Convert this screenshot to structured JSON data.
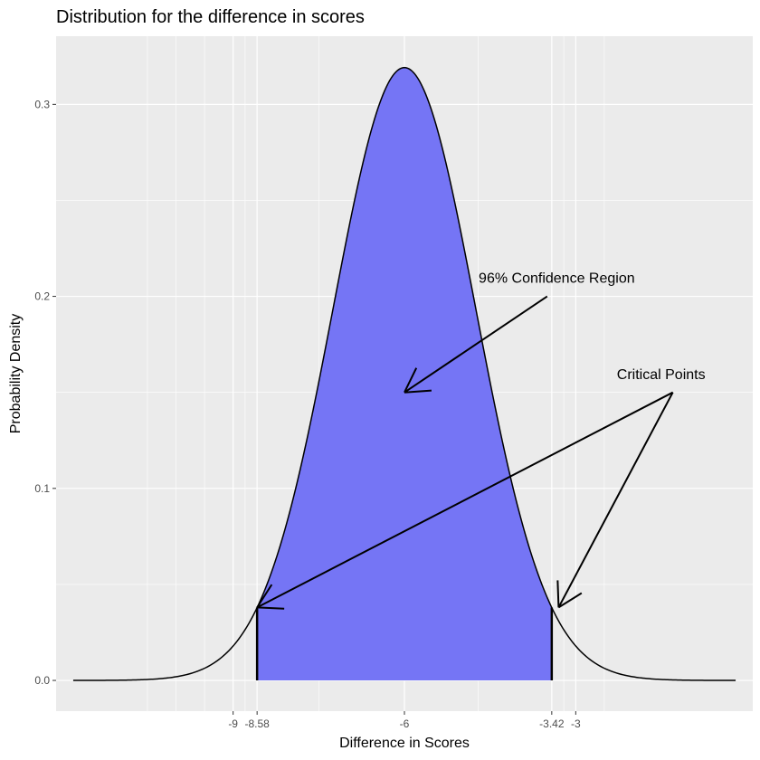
{
  "chart_data": {
    "type": "area",
    "title": "Distribution for the difference in scores",
    "xlabel": "Difference in Scores",
    "ylabel": "Probability Density",
    "distribution": {
      "family": "normal",
      "mean": -6,
      "sd": 1.25
    },
    "x_range": [
      -11.8,
      -0.2
    ],
    "xlim": [
      -12.1,
      0.1
    ],
    "ylim": [
      -0.016,
      0.3355
    ],
    "x_ticks": [
      {
        "value": -9,
        "label": "-9"
      },
      {
        "value": -8.58,
        "label": "-8.58"
      },
      {
        "value": -6,
        "label": "-6"
      },
      {
        "value": -3.42,
        "label": "-3.42"
      },
      {
        "value": -3,
        "label": "-3"
      }
    ],
    "x_minor_grid": [
      -10.5,
      -10.0,
      -9.5,
      -8.79,
      -7.5,
      -4.71,
      -3.21,
      -2.5
    ],
    "y_ticks": [
      {
        "value": 0.0,
        "label": "0.0"
      },
      {
        "value": 0.1,
        "label": "0.1"
      },
      {
        "value": 0.2,
        "label": "0.2"
      },
      {
        "value": 0.3,
        "label": "0.3"
      }
    ],
    "shaded_region": {
      "from": -8.58,
      "to": -3.42,
      "fill": "#7575f5",
      "label": "96% Confidence Region"
    },
    "critical_points": [
      -8.58,
      -3.42
    ],
    "annotations": [
      {
        "text": "96% Confidence Region",
        "text_x": -4.7,
        "text_y": 0.207,
        "arrows": [
          {
            "from": [
              -3.5,
              0.2
            ],
            "to": [
              -6,
              0.15
            ]
          }
        ]
      },
      {
        "text": "Critical Points",
        "text_x": -2.28,
        "text_y": 0.157,
        "arrows": [
          {
            "from": [
              -1.3,
              0.15
            ],
            "to": [
              -8.58,
              0.038
            ]
          },
          {
            "from": [
              -1.3,
              0.15
            ],
            "to": [
              -3.3,
              0.038
            ]
          }
        ]
      }
    ],
    "colors": {
      "panel": "#ebebeb",
      "grid": "#ffffff",
      "fill": "#7575f5",
      "line": "#000000"
    },
    "grid": true,
    "legend": "none"
  }
}
